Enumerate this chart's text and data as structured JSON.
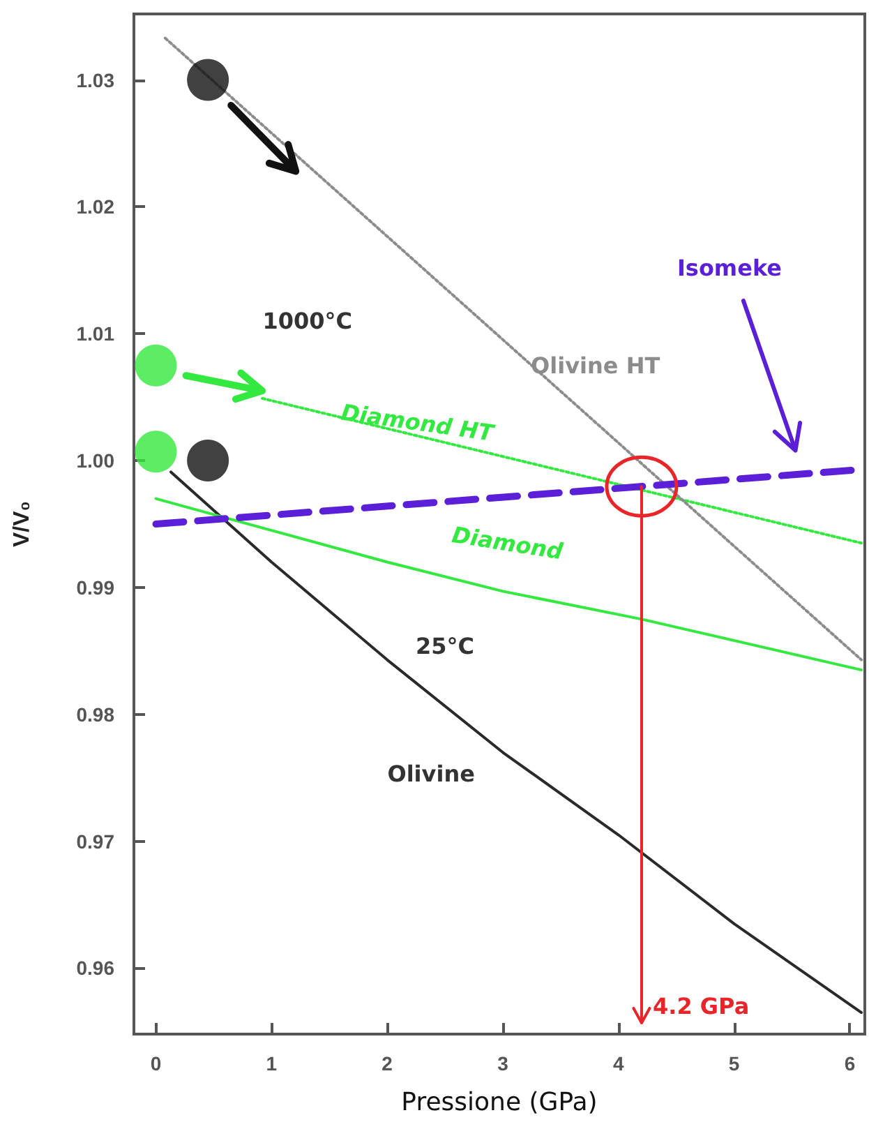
{
  "chart_data": {
    "type": "line",
    "xlabel": "Pressione (GPa)",
    "ylabel": "V/V₀",
    "xlim": [
      -0.19,
      6.13
    ],
    "ylim": [
      0.9548,
      1.0352
    ],
    "xticks": [
      0,
      1,
      2,
      3,
      4,
      5,
      6
    ],
    "yticks": [
      0.96,
      0.97,
      0.98,
      0.99,
      {
        "value": 1,
        "label": "1.00"
      },
      1.01,
      1.02,
      1.03
    ],
    "grid": false,
    "legend": false,
    "series": [
      {
        "name": "Olivine",
        "color": "#2a2a2a",
        "line_style": "solid",
        "marker": "none",
        "x": [
          0.13,
          1,
          2,
          3,
          4,
          5,
          6.1
        ],
        "values": [
          0.9991,
          0.992,
          0.9843,
          0.977,
          0.9705,
          0.9635,
          0.9565
        ]
      },
      {
        "name": "Diamond",
        "color": "#33e83f",
        "line_style": "solid",
        "marker": "none",
        "x": [
          0,
          1,
          2,
          3,
          4.2,
          6.1
        ],
        "values": [
          0.997,
          0.9945,
          0.992,
          0.9897,
          0.9875,
          0.9835
        ]
      },
      {
        "name": "Diamond HT",
        "color": "#33e83f",
        "line_style": "dotted",
        "marker": "none",
        "x": [
          0.92,
          6.1
        ],
        "values": [
          1.0049,
          0.9935
        ]
      },
      {
        "name": "Olivine HT",
        "color": "#8c8c8c",
        "line_style": "dotted",
        "marker": "none",
        "x": [
          0.08,
          6.1
        ],
        "values": [
          1.0333,
          0.9843
        ]
      },
      {
        "name": "Isomeke",
        "color": "#5a1fd6",
        "line_style": "dashed",
        "marker": "none",
        "x": [
          0,
          6.1
        ],
        "values": [
          0.995,
          0.9993
        ]
      },
      {
        "type": "scatter",
        "color": "#111111",
        "marker": "circle",
        "x": [
          0.45,
          0.45
        ],
        "values": [
          1.03,
          1.0
        ]
      },
      {
        "type": "scatter",
        "color": "#33e83f",
        "marker": "circle",
        "x": [
          0,
          0
        ],
        "values": [
          1.0075,
          1.0007
        ]
      }
    ],
    "ref_lines": [
      {
        "axis": "x",
        "value": 4.2,
        "label": "4.2 GPa",
        "color": "#e8262a"
      }
    ],
    "annotations": [
      "1000°C",
      "25°C"
    ]
  }
}
